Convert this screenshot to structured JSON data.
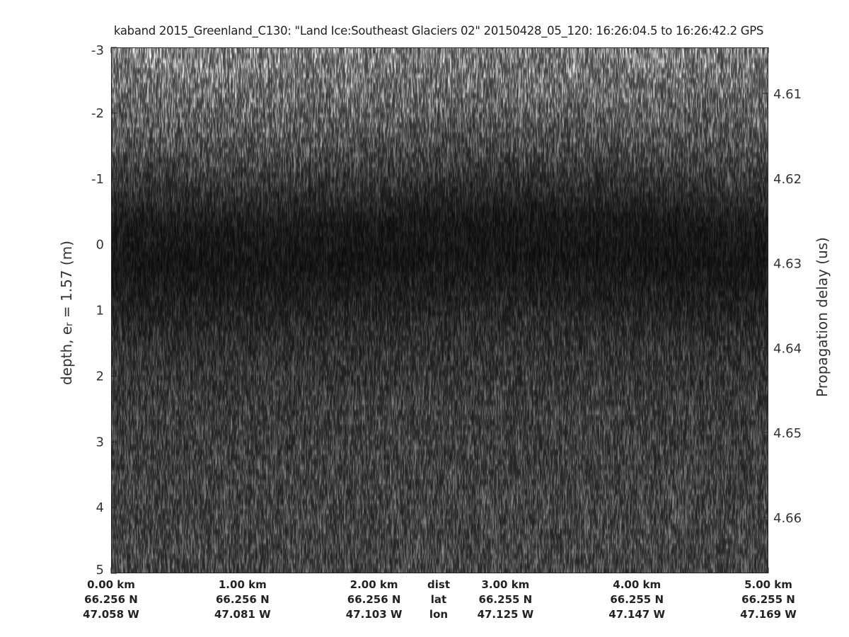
{
  "chart_data": {
    "type": "heatmap",
    "title": "kaband 2015_Greenland_C130: \"Land Ice:Southeast  Glaciers 02\"  20150428_05_120: 16:26:04.5 to 16:26:42.2 GPS",
    "ylabel": {
      "main": "depth, e",
      "sub": "r",
      "rest": " = 1.57 (m)"
    },
    "ylabel_right": "Propagation delay (us)",
    "ylim": [
      -3,
      5
    ],
    "y_ticks": [
      "-3",
      "-2",
      "-1",
      "0",
      "1",
      "2",
      "3",
      "4",
      "5"
    ],
    "y_right_ticks": [
      "4.61",
      "4.62",
      "4.63",
      "4.64",
      "4.65",
      "4.66"
    ],
    "y_right_values": [
      4.61,
      4.62,
      4.63,
      4.64,
      4.65,
      4.66
    ],
    "x_row_labels": {
      "dist": "dist",
      "lat": "lat",
      "lon": "lon"
    },
    "x_ticks": [
      {
        "dist": "0.00 km",
        "lat": "66.256 N",
        "lon": "47.058 W"
      },
      {
        "dist": "1.00 km",
        "lat": "66.256 N",
        "lon": "47.081 W"
      },
      {
        "dist": "2.00 km",
        "lat": "66.256 N",
        "lon": "47.103 W"
      },
      {
        "dist": "3.00 km",
        "lat": "66.255 N",
        "lon": "47.125 W"
      },
      {
        "dist": "4.00 km",
        "lat": "66.255 N",
        "lon": "47.147 W"
      },
      {
        "dist": "5.00 km",
        "lat": "66.255 N",
        "lon": "47.169 W"
      }
    ],
    "xlim_km": [
      0,
      5
    ],
    "colormap": "gray",
    "grid": false
  }
}
